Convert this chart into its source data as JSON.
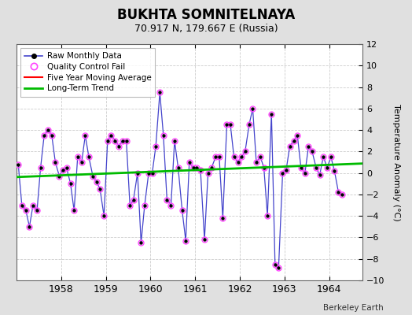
{
  "title": "BUKHTA SOMNITELNAYA",
  "subtitle": "70.917 N, 179.667 E (Russia)",
  "ylabel": "Temperature Anomaly (°C)",
  "watermark": "Berkeley Earth",
  "background_color": "#e0e0e0",
  "plot_bg_color": "#ffffff",
  "ylim": [
    -10,
    12
  ],
  "yticks": [
    -10,
    -8,
    -6,
    -4,
    -2,
    0,
    2,
    4,
    6,
    8,
    10,
    12
  ],
  "xlim_start": 1957.0,
  "xlim_end": 1964.75,
  "raw_x": [
    1957.04,
    1957.12,
    1957.21,
    1957.29,
    1957.37,
    1957.46,
    1957.54,
    1957.62,
    1957.71,
    1957.79,
    1957.87,
    1957.96,
    1958.04,
    1958.12,
    1958.21,
    1958.29,
    1958.37,
    1958.46,
    1958.54,
    1958.62,
    1958.71,
    1958.79,
    1958.87,
    1958.96,
    1959.04,
    1959.12,
    1959.21,
    1959.29,
    1959.37,
    1959.46,
    1959.54,
    1959.62,
    1959.71,
    1959.79,
    1959.87,
    1959.96,
    1960.04,
    1960.12,
    1960.21,
    1960.29,
    1960.37,
    1960.46,
    1960.54,
    1960.62,
    1960.71,
    1960.79,
    1960.87,
    1960.96,
    1961.04,
    1961.12,
    1961.21,
    1961.29,
    1961.37,
    1961.46,
    1961.54,
    1961.62,
    1961.71,
    1961.79,
    1961.87,
    1961.96,
    1962.04,
    1962.12,
    1962.21,
    1962.29,
    1962.37,
    1962.46,
    1962.54,
    1962.62,
    1962.71,
    1962.79,
    1962.87,
    1962.96,
    1963.04,
    1963.12,
    1963.21,
    1963.29,
    1963.37,
    1963.46,
    1963.54,
    1963.62,
    1963.71,
    1963.79,
    1963.87,
    1963.96,
    1964.04,
    1964.12,
    1964.21,
    1964.29
  ],
  "raw_y": [
    0.8,
    -3.0,
    -3.5,
    -5.0,
    -3.0,
    -3.5,
    0.5,
    3.5,
    4.0,
    3.5,
    1.0,
    -0.3,
    0.3,
    0.5,
    -1.0,
    -3.5,
    1.5,
    1.0,
    3.5,
    1.5,
    -0.3,
    -0.8,
    -1.5,
    -4.0,
    3.0,
    3.5,
    3.0,
    2.5,
    3.0,
    3.0,
    -3.0,
    -2.5,
    0.0,
    -6.5,
    -3.0,
    0.0,
    0.0,
    2.5,
    7.5,
    3.5,
    -2.5,
    -3.0,
    3.0,
    0.5,
    -3.5,
    -6.3,
    1.0,
    0.5,
    0.5,
    0.3,
    -6.2,
    0.0,
    0.5,
    1.5,
    1.5,
    -4.2,
    4.5,
    4.5,
    1.5,
    1.0,
    1.5,
    2.0,
    4.5,
    6.0,
    1.0,
    1.5,
    0.5,
    -4.0,
    5.5,
    -8.5,
    -8.8,
    0.0,
    0.3,
    2.5,
    3.0,
    3.5,
    0.5,
    0.0,
    2.5,
    2.0,
    0.5,
    -0.2,
    1.5,
    0.5,
    1.5,
    0.2,
    -1.8,
    -2.0
  ],
  "trend_x": [
    1957.0,
    1964.75
  ],
  "trend_y": [
    -0.38,
    0.88
  ],
  "raw_line_color": "#4444cc",
  "raw_marker_color": "#000000",
  "qc_circle_color": "#ff44ff",
  "trend_color": "#00bb00",
  "moving_avg_color": "#ff0000",
  "grid_color": "#cccccc",
  "xticks": [
    1958,
    1959,
    1960,
    1961,
    1962,
    1963,
    1964
  ]
}
